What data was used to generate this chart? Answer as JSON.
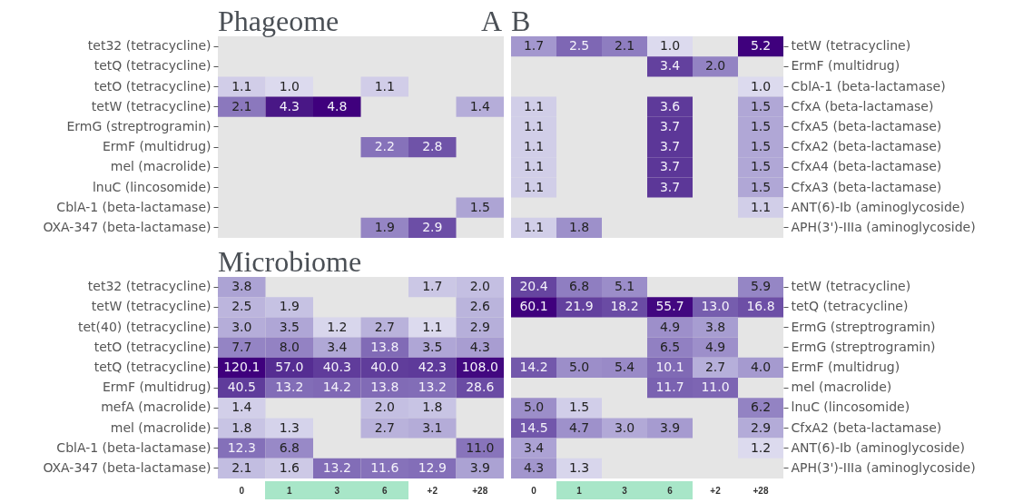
{
  "chart_data": [
    {
      "type": "heatmap",
      "title": "Phageome",
      "annotations": [
        "A"
      ],
      "tick_labels": "y",
      "categories": [
        "0",
        "1",
        "3",
        "6",
        "+2",
        "+28"
      ],
      "y_categories": [
        "tet32 (tetracycline)",
        "tetQ (tetracycline)",
        "tetO (tetracycline)",
        "tetW (tetracycline)",
        "ErmG (streptrogramin)",
        "ErmF (multidrug)",
        "mel (macrolide)",
        "lnuC (lincosomide)",
        "CblA-1 (beta-lactamase)",
        "OXA-347 (beta-lactamase)"
      ],
      "cells": [
        [
          null,
          null,
          null,
          null,
          null,
          null
        ],
        [
          null,
          null,
          null,
          null,
          null,
          null
        ],
        [
          1.1,
          1.0,
          null,
          1.1,
          null,
          null
        ],
        [
          2.1,
          4.3,
          4.8,
          null,
          null,
          1.4
        ],
        [
          null,
          null,
          null,
          null,
          null,
          null
        ],
        [
          null,
          null,
          null,
          2.2,
          2.8,
          null
        ],
        [
          null,
          null,
          null,
          null,
          null,
          null
        ],
        [
          null,
          null,
          null,
          null,
          null,
          null
        ],
        [
          null,
          null,
          null,
          null,
          null,
          1.5
        ],
        [
          null,
          null,
          null,
          1.9,
          2.9,
          null
        ]
      ],
      "cell_labels": [
        [
          null,
          null,
          null,
          null,
          null,
          null
        ],
        [
          null,
          null,
          null,
          null,
          null,
          null
        ],
        [
          "1.1",
          "1.0",
          null,
          "1.1",
          null,
          null
        ],
        [
          "2.1",
          "4.3",
          "4.8",
          null,
          null,
          "1.4"
        ],
        [
          null,
          null,
          null,
          null,
          null,
          null
        ],
        [
          null,
          null,
          null,
          "2.2",
          "2.8",
          null
        ],
        [
          null,
          null,
          null,
          null,
          null,
          null
        ],
        [
          null,
          null,
          null,
          null,
          null,
          null
        ],
        [
          null,
          null,
          null,
          null,
          null,
          "1.5"
        ],
        [
          null,
          null,
          null,
          "1.9",
          "2.9",
          null
        ]
      ]
    },
    {
      "type": "heatmap",
      "title": "B",
      "tick_labels": "y",
      "categories": [
        "0",
        "1",
        "3",
        "6",
        "+2",
        "+28"
      ],
      "y_categories": [
        "tetW (tetracycline)",
        "ErmF (multidrug)",
        "CblA-1 (beta-lactamase)",
        "CfxA (beta-lactamase)",
        "CfxA5 (beta-lactamase)",
        "CfxA2 (beta-lactamase)",
        "CfxA4 (beta-lactamase)",
        "CfxA3 (beta-lactamase)",
        "ANT(6)-Ib (aminoglycoside)",
        "APH(3')-IIIa (aminoglycoside)"
      ],
      "cells": [
        [
          1.7,
          2.5,
          2.1,
          1.0,
          null,
          5.2
        ],
        [
          null,
          null,
          null,
          3.4,
          2.0,
          null
        ],
        [
          null,
          null,
          null,
          null,
          null,
          1.0
        ],
        [
          1.1,
          null,
          null,
          3.6,
          null,
          1.5
        ],
        [
          1.1,
          null,
          null,
          3.7,
          null,
          1.5
        ],
        [
          1.1,
          null,
          null,
          3.7,
          null,
          1.5
        ],
        [
          1.1,
          null,
          null,
          3.7,
          null,
          1.5
        ],
        [
          1.1,
          null,
          null,
          3.7,
          null,
          1.5
        ],
        [
          null,
          null,
          null,
          null,
          null,
          1.1
        ],
        [
          1.1,
          1.8,
          null,
          null,
          null,
          null
        ]
      ],
      "cell_labels": [
        [
          "1.7",
          "2.5",
          "2.1",
          "1.0",
          null,
          "5.2"
        ],
        [
          null,
          null,
          null,
          "3.4",
          "2.0",
          null
        ],
        [
          null,
          null,
          null,
          null,
          null,
          "1.0"
        ],
        [
          "1.1",
          null,
          null,
          "3.6",
          null,
          "1.5"
        ],
        [
          "1.1",
          null,
          null,
          "3.7",
          null,
          "1.5"
        ],
        [
          "1.1",
          null,
          null,
          "3.7",
          null,
          "1.5"
        ],
        [
          "1.1",
          null,
          null,
          "3.7",
          null,
          "1.5"
        ],
        [
          "1.1",
          null,
          null,
          "3.7",
          null,
          "1.5"
        ],
        [
          null,
          null,
          null,
          null,
          null,
          "1.1"
        ],
        [
          "1.1",
          "1.8",
          null,
          null,
          null,
          null
        ]
      ]
    },
    {
      "type": "heatmap",
      "title": "Microbiome",
      "categories": [
        "0",
        "1",
        "3",
        "6",
        "+2",
        "+28"
      ],
      "y_categories": [
        "tet32 (tetracycline)",
        "tetW (tetracycline)",
        "tet(40) (tetracycline)",
        "tetO (tetracycline)",
        "tetQ (tetracycline)",
        "ErmF (multidrug)",
        "mefA (macrolide)",
        "mel (macrolide)",
        "CblA-1 (beta-lactamase)",
        "OXA-347 (beta-lactamase)"
      ],
      "cells": [
        [
          3.8,
          null,
          null,
          null,
          1.7,
          2.0
        ],
        [
          2.5,
          1.9,
          null,
          null,
          null,
          2.6
        ],
        [
          3.0,
          3.5,
          1.2,
          2.7,
          1.1,
          2.9
        ],
        [
          7.7,
          8.0,
          3.4,
          13.8,
          3.5,
          4.3
        ],
        [
          120.1,
          57.0,
          40.3,
          40.0,
          42.3,
          108.0
        ],
        [
          40.5,
          13.2,
          14.2,
          13.8,
          13.2,
          28.6
        ],
        [
          1.4,
          null,
          null,
          2.0,
          1.8,
          null
        ],
        [
          1.8,
          1.3,
          null,
          2.7,
          3.1,
          null
        ],
        [
          12.3,
          6.8,
          null,
          null,
          null,
          11.0
        ],
        [
          2.1,
          1.6,
          13.2,
          11.6,
          12.9,
          3.9
        ]
      ],
      "cell_labels": [
        [
          "3.8",
          null,
          null,
          null,
          "1.7",
          "2.0"
        ],
        [
          "2.5",
          "1.9",
          null,
          null,
          null,
          "2.6"
        ],
        [
          "3.0",
          "3.5",
          "1.2",
          "2.7",
          "1.1",
          "2.9"
        ],
        [
          "7.7",
          "8.0",
          "3.4",
          "13.8",
          "3.5",
          "4.3"
        ],
        [
          "120.1",
          "57.0",
          "40.3",
          "40.0",
          "42.3",
          "108.0"
        ],
        [
          "40.5",
          "13.2",
          "14.2",
          "13.8",
          "13.2",
          "28.6"
        ],
        [
          "1.4",
          null,
          null,
          "2.0",
          "1.8",
          null
        ],
        [
          "1.8",
          "1.3",
          null,
          "2.7",
          "3.1",
          null
        ],
        [
          "12.3",
          "6.8",
          null,
          null,
          null,
          "11.0"
        ],
        [
          "2.1",
          "1.6",
          "13.2",
          "11.6",
          "12.9",
          "3.9"
        ]
      ]
    },
    {
      "type": "heatmap",
      "categories": [
        "0",
        "1",
        "3",
        "6",
        "+2",
        "+28"
      ],
      "y_categories": [
        "tetW (tetracycline)",
        "tetQ (tetracycline)",
        "ErmG (streptrogramin)",
        "ErmG (streptrogramin)",
        "ErmF (multidrug)",
        "mel (macrolide)",
        "lnuC (lincosomide)",
        "CfxA2 (beta-lactamase)",
        "ANT(6)-Ib (aminoglycoside)",
        "APH(3')-IIIa (aminoglycoside)"
      ],
      "cells": [
        [
          20.4,
          6.8,
          5.1,
          null,
          null,
          5.9
        ],
        [
          60.1,
          21.9,
          18.2,
          55.7,
          13.0,
          16.8
        ],
        [
          null,
          null,
          null,
          4.9,
          3.8,
          null
        ],
        [
          null,
          null,
          null,
          6.5,
          4.9,
          null
        ],
        [
          14.2,
          5.0,
          5.4,
          10.1,
          2.7,
          4.0
        ],
        [
          null,
          null,
          null,
          11.7,
          11.0,
          null
        ],
        [
          5.0,
          1.5,
          null,
          null,
          null,
          6.2
        ],
        [
          14.5,
          4.7,
          3.0,
          3.9,
          null,
          2.9
        ],
        [
          3.4,
          null,
          null,
          null,
          null,
          1.2
        ],
        [
          4.3,
          1.3,
          null,
          null,
          null,
          null
        ]
      ],
      "cell_labels": [
        [
          "20.4",
          "6.8",
          "5.1",
          null,
          null,
          "5.9"
        ],
        [
          "60.1",
          "21.9",
          "18.2",
          "55.7",
          "13.0",
          "16.8"
        ],
        [
          null,
          null,
          null,
          "4.9",
          "3.8",
          null
        ],
        [
          null,
          null,
          null,
          "6.5",
          "4.9",
          null
        ],
        [
          "14.2",
          "5.0",
          "5.4",
          "10.1",
          "2.7",
          "4.0"
        ],
        [
          null,
          null,
          null,
          "11.7",
          "11.0",
          null
        ],
        [
          "5.0",
          "1.5",
          null,
          null,
          null,
          "6.2"
        ],
        [
          "14.5",
          "4.7",
          "3.0",
          "3.9",
          null,
          "2.9"
        ],
        [
          "3.4",
          null,
          null,
          null,
          null,
          "1.2"
        ],
        [
          "4.3",
          "1.3",
          null,
          null,
          null,
          null
        ]
      ]
    }
  ]
}
